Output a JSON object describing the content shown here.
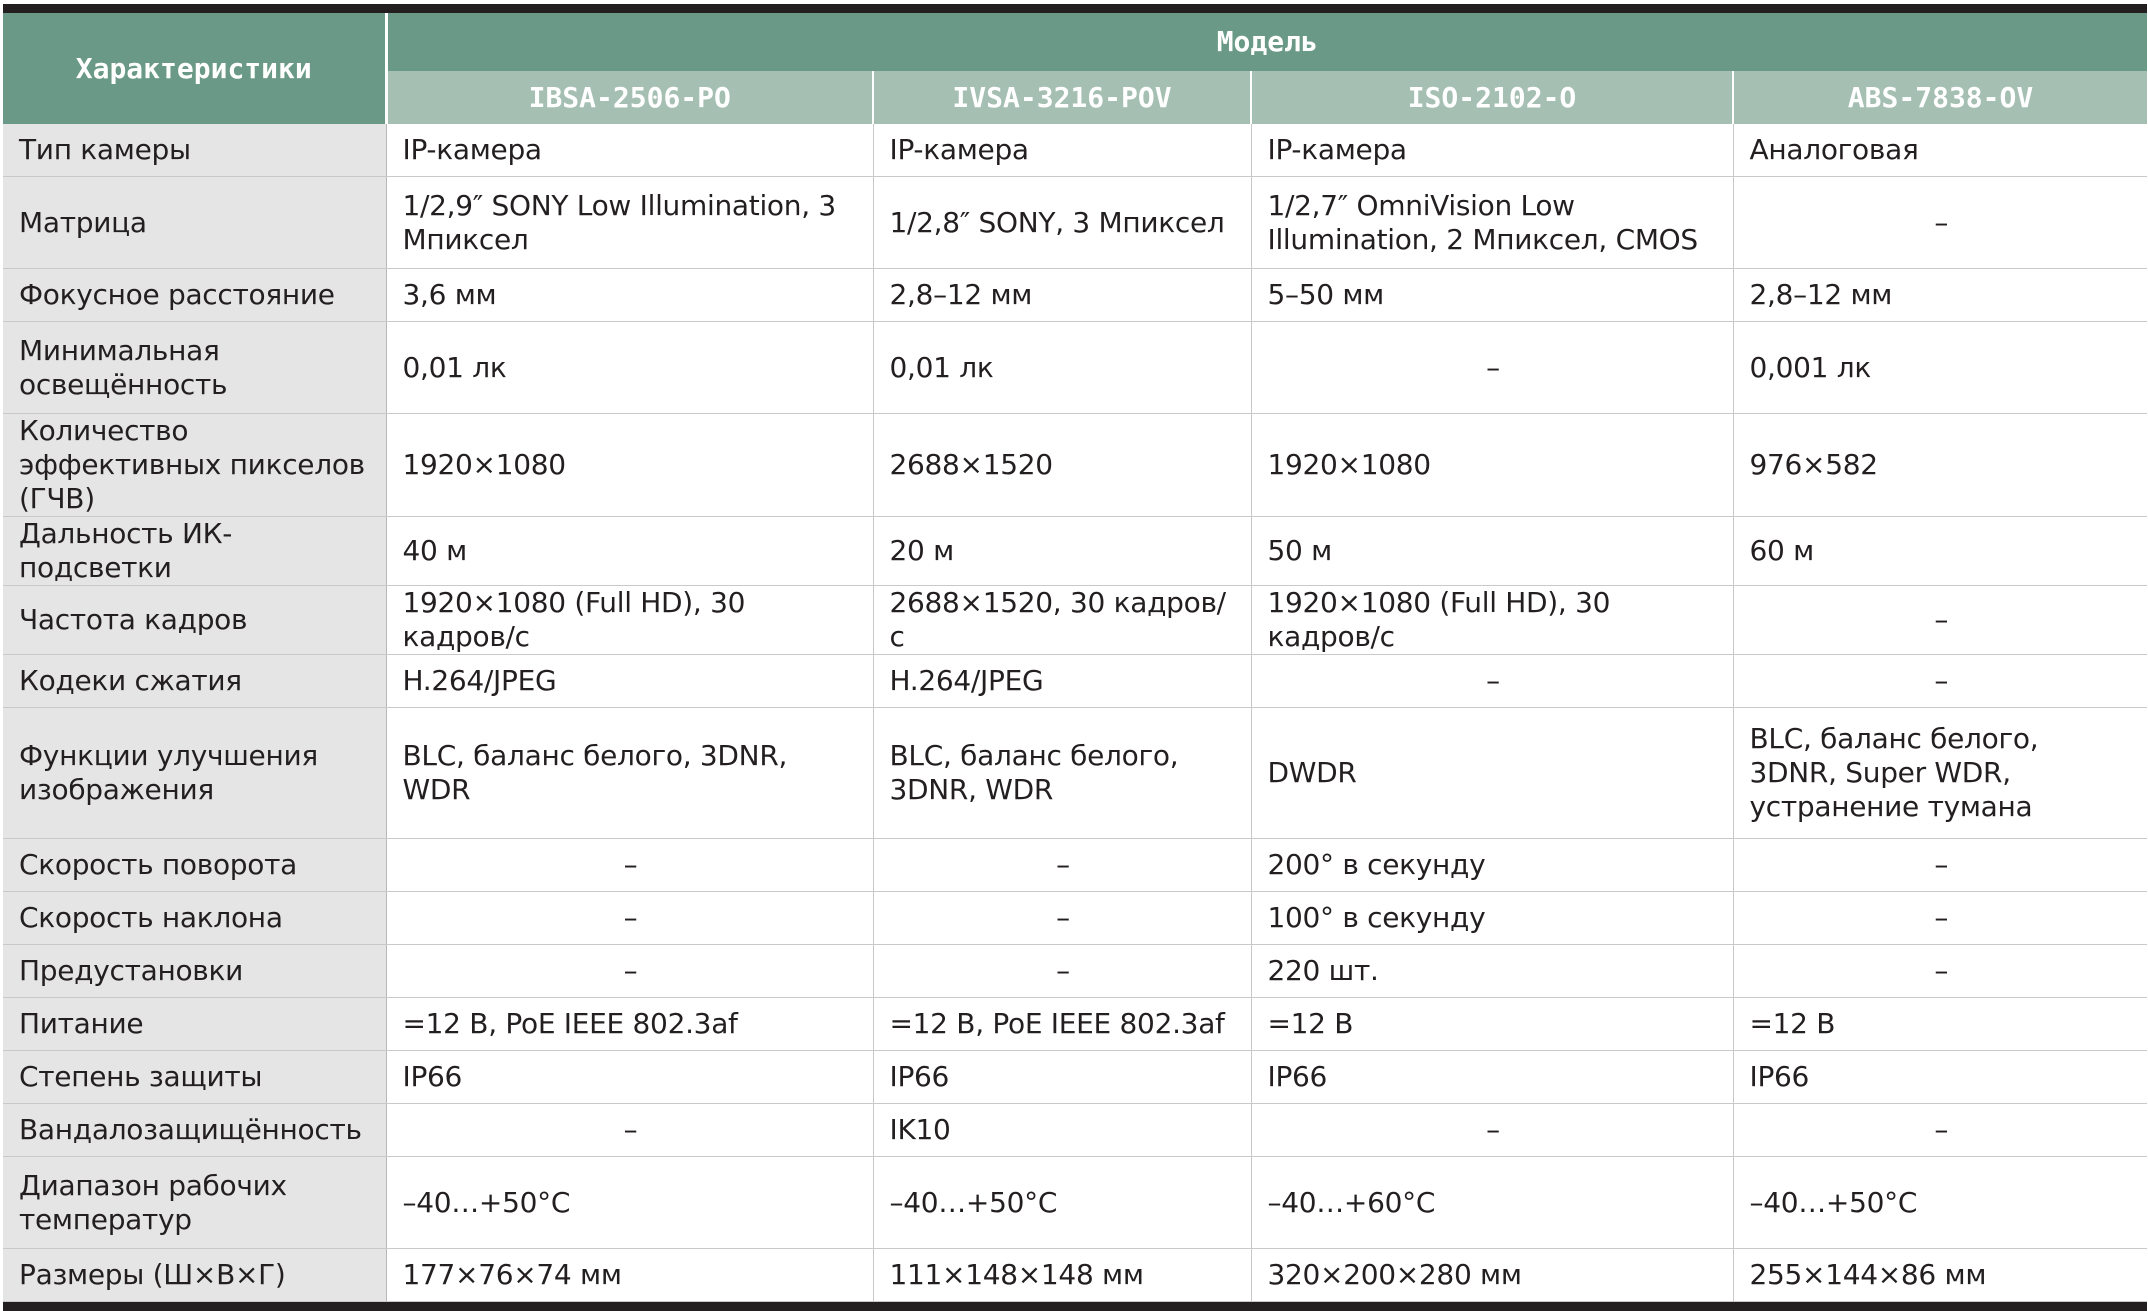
{
  "header": {
    "characteristics": "Характеристики",
    "model": "Модель",
    "models": [
      "IBSA-2506-PO",
      "IVSA-3216-POV",
      "ISO-2102-O",
      "ABS-7838-OV"
    ]
  },
  "rows": [
    {
      "label": "Тип камеры",
      "cells": [
        "IP-камера",
        "IP-камера",
        "IP-камера",
        "Аналоговая"
      ]
    },
    {
      "label": "Матрица",
      "cells": [
        "1/2,9″ SONY Low Illumination, 3 Мпиксел",
        "1/2,8″ SONY, 3 Мпиксел",
        "1/2,7″ OmniVision Low Illumination, 2 Мпиксел, CMOS",
        "–"
      ]
    },
    {
      "label": "Фокусное расстояние",
      "cells": [
        "3,6 мм",
        "2,8–12 мм",
        "5–50 мм",
        "2,8–12 мм"
      ]
    },
    {
      "label": "Минимальная освещённость",
      "cells": [
        "0,01 лк",
        "0,01 лк",
        "–",
        "0,001 лк"
      ]
    },
    {
      "label": "Количество эффективных пикселов (ГЧВ)",
      "cells": [
        "1920×1080",
        "2688×1520",
        "1920×1080",
        "976×582"
      ]
    },
    {
      "label": "Дальность ИК-подсветки",
      "cells": [
        "40 м",
        "20 м",
        "50 м",
        "60 м"
      ]
    },
    {
      "label": "Частота кадров",
      "cells": [
        "1920×1080 (Full HD), 30 кадров/с",
        "2688×1520, 30 кадров/с",
        "1920×1080 (Full HD), 30 кадров/с",
        "–"
      ]
    },
    {
      "label": "Кодеки сжатия",
      "cells": [
        "H.264/JPEG",
        "H.264/JPEG",
        "–",
        "–"
      ]
    },
    {
      "label": "Функции улучшения изображения",
      "cells": [
        "BLC, баланс белого, 3DNR, WDR",
        "BLC, баланс белого, 3DNR, WDR",
        "DWDR",
        "BLC, баланс белого, 3DNR, Super WDR, устранение тумана"
      ]
    },
    {
      "label": "Скорость поворота",
      "cells": [
        "–",
        "–",
        "200° в секунду",
        "–"
      ]
    },
    {
      "label": "Скорость наклона",
      "cells": [
        "–",
        "–",
        "100° в секунду",
        "–"
      ]
    },
    {
      "label": "Предустановки",
      "cells": [
        "–",
        "–",
        "220 шт.",
        "–"
      ]
    },
    {
      "label": "Питание",
      "cells": [
        "=12 В, PoE IEEE 802.3af",
        "=12 В, PoE IEEE 802.3af",
        "=12 В",
        "=12 В"
      ]
    },
    {
      "label": "Степень защиты",
      "cells": [
        "IP66",
        "IP66",
        "IP66",
        "IP66"
      ]
    },
    {
      "label": "Вандалозащищённость",
      "cells": [
        "–",
        "IK10",
        "–",
        "–"
      ]
    },
    {
      "label": "Диапазон рабочих температур",
      "cells": [
        "–40…+50°C",
        "–40…+50°C",
        "–40…+60°C",
        "–40…+50°C"
      ]
    },
    {
      "label": "Размеры (Ш×В×Г)",
      "cells": [
        "177×76×74 мм",
        "111×148×148 мм",
        "320×200×280 мм",
        "255×144×86 мм"
      ]
    }
  ],
  "colors": {
    "header_dark": "#6a9a87",
    "header_light": "#a5bfb3",
    "row_header_bg": "#e5e5e6",
    "rule": "#231f20"
  }
}
